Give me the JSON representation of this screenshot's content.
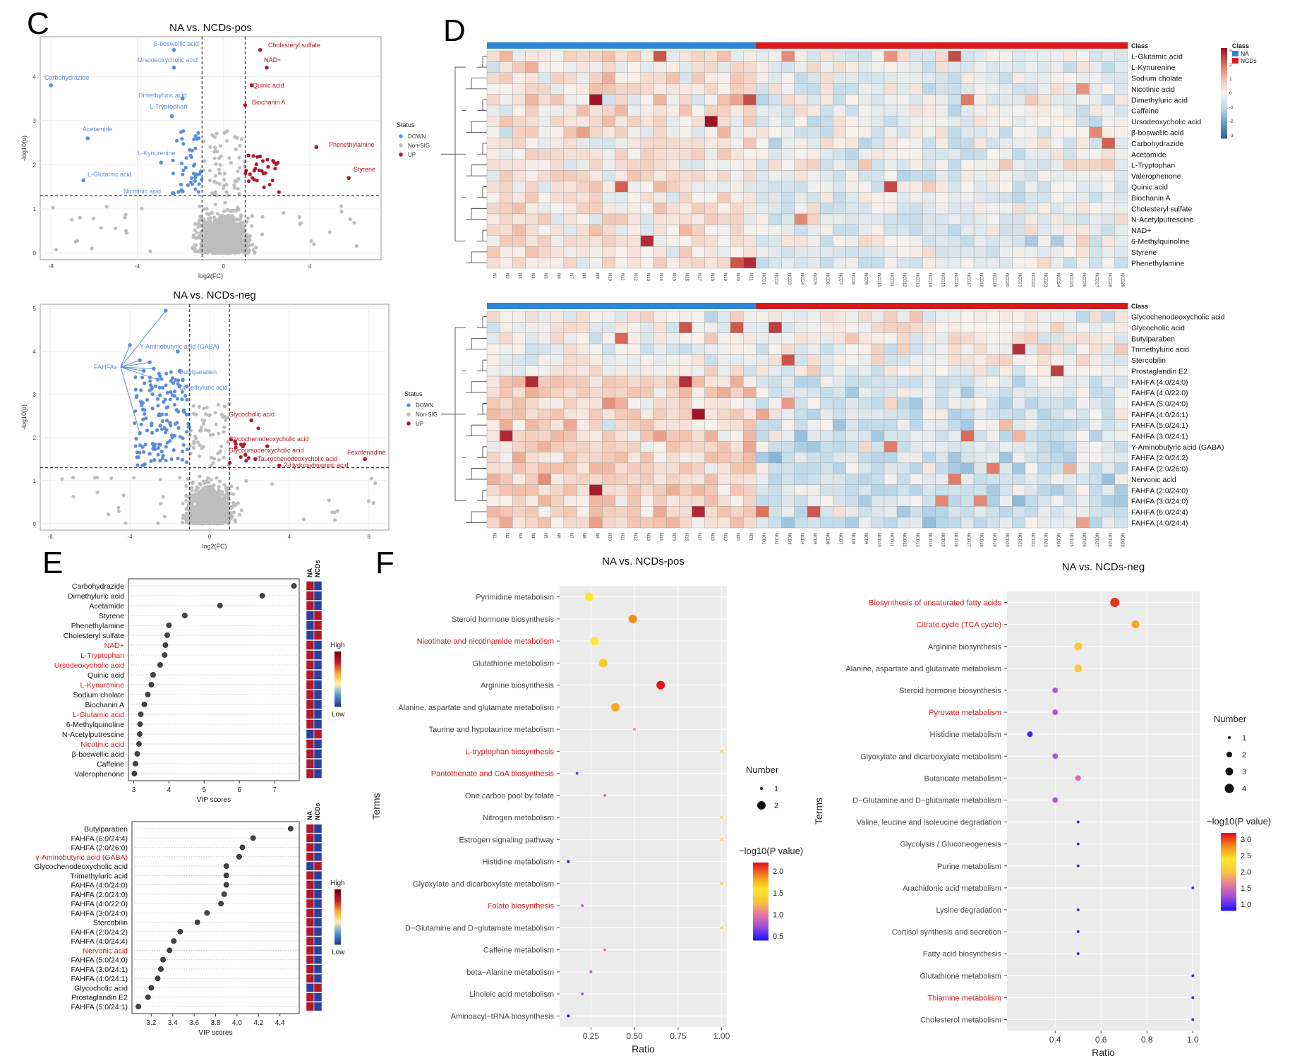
{
  "panels": {
    "C": "C",
    "D": "D",
    "E": "E",
    "F": "F"
  },
  "chart_data": [
    {
      "id": "C-pos",
      "type": "scatter",
      "title": "NA vs. NCDs-pos",
      "xlabel": "log2(FC)",
      "ylabel": "-log10(p)",
      "xlim": [
        -8.5,
        7.3
      ],
      "ylim": [
        -0.15,
        4.9
      ],
      "xticks": [
        -8,
        -4,
        0,
        4
      ],
      "yticks": [
        0,
        1,
        2,
        3,
        4
      ],
      "vlines": [
        -1,
        1
      ],
      "hline": 1.3,
      "legend": {
        "title": "Status",
        "entries": [
          "DOWN",
          "Non-SIG",
          "UP"
        ],
        "colors": [
          "#5b8ed8",
          "#bdbdbd",
          "#b2182b"
        ]
      },
      "labeled_points": [
        {
          "name": "β-boswellic acid",
          "x": -2.3,
          "y": 4.6,
          "status": "DOWN"
        },
        {
          "name": "Ursodeoxycholic acid",
          "x": -2.3,
          "y": 4.2,
          "status": "DOWN"
        },
        {
          "name": "Carbohydrazide",
          "x": -8.0,
          "y": 3.8,
          "status": "DOWN"
        },
        {
          "name": "Dimethyluric acid",
          "x": -1.9,
          "y": 3.5,
          "status": "DOWN"
        },
        {
          "name": "L-Tryptophan",
          "x": -2.4,
          "y": 3.1,
          "status": "DOWN"
        },
        {
          "name": "Acetamide",
          "x": -6.3,
          "y": 2.6,
          "status": "DOWN"
        },
        {
          "name": "L-Kynurenine",
          "x": -2.9,
          "y": 2.05,
          "status": "DOWN"
        },
        {
          "name": "L-Glutamic acid",
          "x": -6.5,
          "y": 1.65,
          "status": "DOWN"
        },
        {
          "name": "Nicotinic acid",
          "x": -1.9,
          "y": 1.4,
          "status": "DOWN"
        },
        {
          "name": "Cholesteryl sulfate",
          "x": 1.7,
          "y": 4.6,
          "status": "UP"
        },
        {
          "name": "NAD+",
          "x": 2.0,
          "y": 4.2,
          "status": "UP"
        },
        {
          "name": "Quinic acid",
          "x": 1.3,
          "y": 3.8,
          "status": "UP"
        },
        {
          "name": "Biochanin A",
          "x": 1.0,
          "y": 3.35,
          "status": "UP"
        },
        {
          "name": "Phenethylamine",
          "x": 4.3,
          "y": 2.4,
          "status": "UP"
        },
        {
          "name": "Styrene",
          "x": 5.8,
          "y": 1.7,
          "status": "UP"
        }
      ]
    },
    {
      "id": "C-neg",
      "type": "scatter",
      "title": "NA vs. NCDs-neg",
      "xlabel": "log2(FC)",
      "ylabel": "-log10(p)",
      "xlim": [
        -8.5,
        9.0
      ],
      "ylim": [
        -0.15,
        5.1
      ],
      "xticks": [
        -8,
        -4,
        0,
        4,
        8
      ],
      "yticks": [
        0,
        1,
        2,
        3,
        4,
        5
      ],
      "vlines": [
        -1,
        1
      ],
      "hline": 1.3,
      "legend": {
        "title": "Status",
        "entries": [
          "DOWN",
          "Non-SIG",
          "UP"
        ],
        "colors": [
          "#5b8ed8",
          "#bdbdbd",
          "#b2182b"
        ]
      },
      "group_label": "FAHFAs",
      "labeled_points": [
        {
          "name": "Y-Aminobutyric acid (GABA)",
          "x": -1.6,
          "y": 4.0,
          "status": "DOWN"
        },
        {
          "name": "Butylparaben",
          "x": -1.5,
          "y": 3.55,
          "status": "DOWN"
        },
        {
          "name": "Dimethyluric acid",
          "x": -1.5,
          "y": 3.2,
          "status": "DOWN"
        },
        {
          "name": "Glycocholic acid",
          "x": 2.1,
          "y": 2.4,
          "status": "UP"
        },
        {
          "name": "Glycochenodeoxycholic acid",
          "x": 2.9,
          "y": 1.8,
          "status": "UP"
        },
        {
          "name": "Glycoursodeoxycholic acid",
          "x": 1.8,
          "y": 1.6,
          "status": "UP"
        },
        {
          "name": "Taurochenodeoxycholic acid",
          "x": 2.3,
          "y": 1.5,
          "status": "UP"
        },
        {
          "name": "2-Hydroxyhippuric acid",
          "x": 3.5,
          "y": 1.35,
          "status": "UP"
        },
        {
          "name": "Fexofenadine",
          "x": 7.8,
          "y": 1.5,
          "status": "UP"
        }
      ]
    },
    {
      "id": "D-pos",
      "type": "heatmap",
      "header_label": "Class",
      "legend": {
        "title": "Class",
        "entries": [
          "NA",
          "NCDs"
        ],
        "colors": [
          "#2e86d6",
          "#d7191c"
        ],
        "scale_ticks": [
          "3",
          "2",
          "1",
          "0",
          "-1",
          "-2",
          "-3"
        ]
      },
      "columns_na": [
        "N1",
        "N2",
        "N3",
        "N4",
        "N5",
        "N6",
        "N7",
        "N8",
        "N9",
        "N10",
        "N11",
        "N12",
        "N13",
        "N14",
        "N15",
        "N16",
        "N17",
        "N18",
        "N19",
        "N20",
        "N21"
      ],
      "columns_ncd": [
        "NCD1",
        "NCD2",
        "NCD3",
        "NCD4",
        "NCD5",
        "NCD6",
        "NCD7",
        "NCD8",
        "NCD9",
        "NCD10",
        "NCD11",
        "NCD12",
        "NCD13",
        "NCD14",
        "NCD15",
        "NCD16",
        "NCD17",
        "NCD18",
        "NCD19",
        "NCD20",
        "NCD21",
        "NCD22",
        "NCD23",
        "NCD24",
        "NCD25",
        "NCD26",
        "NCD27",
        "NCD28",
        "NCD29"
      ],
      "rows": [
        "L-Glutamic acid",
        "L-Kynurenine",
        "Sodium cholate",
        "Nicotinic acid",
        "Dimethyluric acid",
        "Caffeine",
        "Ursodeoxycholic acid",
        "β-boswellic acid",
        "Carbohydrazide",
        "Acetamide",
        "L-Tryptophan",
        "Valerophenone",
        "Quinic acid",
        "Biochanin A",
        "Cholesteryl sulfate",
        "N-Acetylputrescine",
        "NAD+",
        "6-Methylquinoline",
        "Styrene",
        "Phenethylamine"
      ]
    },
    {
      "id": "D-neg",
      "type": "heatmap",
      "header_label": "Class",
      "rows": [
        "Glycochenodeoxycholic acid",
        "Glycocholic acid",
        "Butylparaben",
        "Trimethyluric acid",
        "Stercobilin",
        "Prostaglandin E2",
        "FAHFA (4:0/24:0)",
        "FAHFA (4:0/22:0)",
        "FAHFA (5:0/24:0)",
        "FAHFA (4:0/24:1)",
        "FAHFA (5:0/24:1)",
        "FAHFA (3:0/24:1)",
        "Y-Aminobutyric acid (GABA)",
        "FAHFA (2:0/24:2)",
        "FAHFA (2:0/26:0)",
        "Nervonic acid",
        "FAHFA (2:0/24:0)",
        "FAHFA (3:0/24:0)",
        "FAHFA (6:0/24:4)",
        "FAHFA (4:0/24:4)"
      ]
    },
    {
      "id": "E-pos",
      "type": "scatter",
      "xlabel": "VIP scores",
      "xlim": [
        2.85,
        7.7
      ],
      "xticks": [
        3,
        4,
        5,
        6,
        7
      ],
      "col_headers": [
        "NA",
        "NCDs"
      ],
      "scale": {
        "high": "High",
        "low": "Low"
      },
      "categories": [
        "Carbohydrazide",
        "Dimethyluric acid",
        "Acetamide",
        "Styrene",
        "Phenethylamine",
        "Cholesteryl sulfate",
        "NAD+",
        "L-Tryptophan",
        "Ursodeoxycholic acid",
        "Quinic acid",
        "L-Kynurenine",
        "Sodium cholate",
        "Biochanin A",
        "L-Glutamic acid",
        "6-Methylquinoline",
        "N-Acetylputrescine",
        "Nicotinic acid",
        "β-boswellic acid",
        "Caffeine",
        "Valerophenone"
      ],
      "values": [
        7.55,
        6.65,
        5.45,
        4.45,
        4.0,
        3.95,
        3.9,
        3.88,
        3.75,
        3.55,
        3.5,
        3.4,
        3.3,
        3.2,
        3.18,
        3.17,
        3.15,
        3.1,
        3.05,
        3.02
      ],
      "highlighted": [
        "NAD+",
        "L-Tryptophan",
        "Ursodeoxycholic acid",
        "L-Kynurenine",
        "L-Glutamic acid",
        "Nicotinic acid"
      ],
      "na_high": [
        true,
        true,
        true,
        false,
        false,
        false,
        true,
        true,
        true,
        true,
        true,
        true,
        true,
        true,
        true,
        false,
        true,
        true,
        true,
        true
      ]
    },
    {
      "id": "E-neg",
      "type": "scatter",
      "xlabel": "VIP scores",
      "xlim": [
        3.02,
        4.58
      ],
      "xticks": [
        3.2,
        3.4,
        3.6,
        3.8,
        4.0,
        4.2,
        4.4
      ],
      "xtick_labels": [
        "3.2",
        "3.4",
        "3.6",
        "3.8",
        "4.0",
        "4.2",
        "4.4"
      ],
      "col_headers": [
        "NA",
        "NCDs"
      ],
      "scale": {
        "high": "High",
        "low": "Low"
      },
      "categories": [
        "Butylparaben",
        "FAHFA (6:0/24:4)",
        "FAHFA (2:0/26:0)",
        "γ-Aminobutyric acid (GABA)",
        "Glycochenodeoxycholic acid",
        "Trimethyluric acid",
        "FAHFA (4:0/24:0)",
        "FAHFA (2:0/24:0)",
        "FAHFA (4:0/22:0)",
        "FAHFA (3:0/24:0)",
        "Stercobilin",
        "FAHFA (2:0/24:2)",
        "FAHFA (4:0/24:4)",
        "Nervonic acid",
        "FAHFA (5:0/24:0)",
        "FAHFA (3:0/24:1)",
        "FAHFA (4:0/24:1)",
        "Glycocholic acid",
        "Prostaglandin E2",
        "FAHFA (5:0/24:1)"
      ],
      "values": [
        4.5,
        4.15,
        4.05,
        4.02,
        3.9,
        3.9,
        3.9,
        3.88,
        3.85,
        3.72,
        3.63,
        3.47,
        3.41,
        3.37,
        3.31,
        3.29,
        3.26,
        3.2,
        3.17,
        3.08
      ],
      "highlighted": [
        "γ-Aminobutyric acid (GABA)",
        "Nervonic acid"
      ],
      "na_high": [
        true,
        true,
        true,
        true,
        false,
        true,
        true,
        true,
        true,
        true,
        true,
        true,
        true,
        true,
        true,
        true,
        true,
        false,
        true,
        true
      ]
    },
    {
      "id": "F-pos",
      "type": "scatter",
      "title": "NA vs. NCDs-pos",
      "xlabel": "Ratio",
      "ylabel": "Terms",
      "xlim": [
        0.07,
        1.03
      ],
      "xticks": [
        0.25,
        0.5,
        0.75,
        1.0
      ],
      "xtick_labels": [
        "0.25",
        "0.50",
        "0.75",
        "1.00"
      ],
      "size_legend": {
        "title": "Number",
        "values": [
          1,
          2
        ]
      },
      "color_legend": {
        "title": "−log10(P value)",
        "range": [
          0.4,
          2.2
        ],
        "ticks": [
          0.5,
          1.0,
          1.5,
          2.0
        ],
        "tick_labels": [
          "0.5",
          "1.0",
          "1.5",
          "2.0"
        ]
      },
      "terms": [
        "Pyrimidine metabolism",
        "Steroid hormone biosynthesis",
        "Nicotinate and nicotinamide metabolism",
        "Glutathione metabolism",
        "Arginine biosynthesis",
        "Alanine, aspartate and glutamate metabolism",
        "Taurine and hypotaurine metabolism",
        "L-tryptophan biosynthesis",
        "Pantothenate and CoA biosynthesis",
        "One carbon pool by folate",
        "Nitrogen metabolism",
        "Estrogen signaling pathway",
        "Histidine metabolism",
        "Glyoxylate and dicarboxylate metabolism",
        "Folate biosynthesis",
        "D−Glutamine and D−glutamate metabolism",
        "Caffeine metabolism",
        "beta−Alanine metabolism",
        "Linoleic acid metabolism",
        "Aminoacyl−tRNA biosynthesis"
      ],
      "ratio": [
        0.24,
        0.49,
        0.27,
        0.32,
        0.65,
        0.39,
        0.5,
        1.0,
        0.17,
        0.33,
        1.0,
        1.0,
        0.12,
        1.0,
        0.2,
        1.0,
        0.33,
        0.25,
        0.2,
        0.12
      ],
      "number": [
        2,
        2,
        2,
        2,
        2,
        2,
        1,
        1,
        1,
        1,
        1,
        1,
        1,
        1,
        1,
        1,
        1,
        1,
        1,
        1
      ],
      "neglog10p": [
        1.6,
        1.9,
        1.6,
        1.7,
        2.2,
        1.8,
        1.1,
        1.5,
        0.6,
        1.0,
        1.5,
        1.5,
        0.4,
        1.5,
        0.8,
        1.5,
        1.0,
        0.8,
        0.7,
        0.4
      ],
      "highlighted": [
        "Nicotinate and nicotinamide metabolism",
        "L-tryptophan biosynthesis",
        "Pantothenate and CoA biosynthesis",
        "Folate biosynthesis"
      ]
    },
    {
      "id": "F-neg",
      "type": "scatter",
      "title": "NA vs. NCDs-neg",
      "xlabel": "Ratio",
      "ylabel": "Terms",
      "xlim": [
        0.19,
        1.03
      ],
      "xticks": [
        0.4,
        0.6,
        0.8,
        1.0
      ],
      "xtick_labels": [
        "0.4",
        "0.6",
        "0.8",
        "1.0"
      ],
      "size_legend": {
        "title": "Number",
        "values": [
          1,
          2,
          3,
          4
        ]
      },
      "color_legend": {
        "title": "−log10(P value)",
        "range": [
          0.8,
          3.2
        ],
        "ticks": [
          1.0,
          1.5,
          2.0,
          2.5,
          3.0
        ],
        "tick_labels": [
          "1.0",
          "1.5",
          "2.0",
          "2.5",
          "3.0"
        ]
      },
      "terms": [
        "Biosynthesis of unsaturated fatty acids",
        "Citrate cycle (TCA cycle)",
        "Arginine biosynthesis",
        "Alanine, aspartate and glutamate metabolism",
        "Steroid hormone biosynthesis",
        "Pyruvate metabolism",
        "Histidine metabolism",
        "Glyoxylate and dicarboxylate metabolism",
        "Butanoate metabolism",
        "D−Glutamine and D−glutamate metabolism",
        "Valine, leucine and isoleucine degradation",
        "Glycolysis / Gluconeogenesis",
        "Purine metabolism",
        "Arachidonic acid metabolism",
        "Lysine degradation",
        "Cortisol synthesis and secretion",
        "Fatty acid biosynthesis",
        "Glutathione metabolism",
        "Thiamine metabolism",
        "Cholesterol metabolism"
      ],
      "ratio": [
        0.66,
        0.75,
        0.5,
        0.5,
        0.4,
        0.4,
        0.29,
        0.4,
        0.5,
        0.4,
        0.5,
        0.5,
        0.5,
        1.0,
        0.5,
        0.5,
        0.5,
        1.0,
        1.0,
        1.0
      ],
      "number": [
        4,
        3,
        3,
        3,
        2,
        2,
        2,
        2,
        2,
        2,
        1,
        1,
        1,
        1,
        1,
        1,
        1,
        1,
        1,
        1
      ],
      "neglog10p": [
        3.1,
        2.7,
        2.0,
        2.0,
        1.3,
        1.3,
        0.9,
        1.3,
        1.5,
        1.3,
        0.9,
        0.9,
        0.9,
        0.9,
        0.9,
        0.9,
        0.9,
        0.9,
        0.9,
        0.9
      ],
      "highlighted": [
        "Biosynthesis of unsaturated fatty acids",
        "Citrate cycle (TCA cycle)",
        "Pyruvate metabolism",
        "Thiamine metabolism"
      ]
    }
  ]
}
